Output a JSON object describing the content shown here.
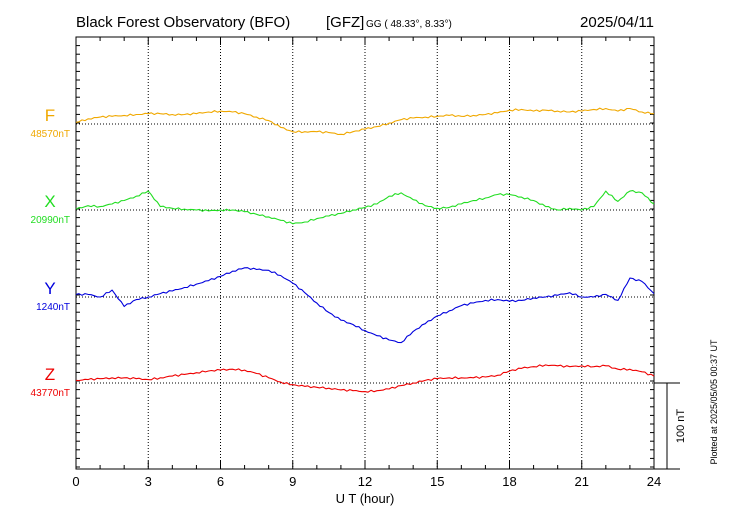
{
  "chart_data": {
    "type": "line",
    "title": "Black Forest Observatory (BFO)",
    "agency": "[GFZ]",
    "coords": "GG ( 48.33°,   8.33°)",
    "date": "2025/04/11",
    "xlabel": "U T (hour)",
    "xlim": [
      0,
      24
    ],
    "xticks": [
      "0",
      "3",
      "6",
      "9",
      "12",
      "15",
      "18",
      "21",
      "24"
    ],
    "scale_label": "100 nT",
    "scale_nT": 100,
    "plotted_note": "Plotted at 2025/05/05 00:37 UT",
    "grid": true,
    "series": [
      {
        "name": "F",
        "baseline_label": "48570nT",
        "baseline": 48570,
        "color": "#f0a800",
        "x": [
          0,
          0.5,
          1,
          1.5,
          2,
          2.5,
          3,
          3.5,
          4,
          4.5,
          5,
          5.5,
          6,
          6.5,
          7,
          7.5,
          8,
          8.5,
          9,
          9.5,
          10,
          10.5,
          11,
          11.5,
          12,
          12.5,
          13,
          13.5,
          14,
          14.5,
          15,
          15.5,
          16,
          16.5,
          17,
          17.5,
          18,
          18.5,
          19,
          19.5,
          20,
          20.5,
          21,
          21.5,
          22,
          22.5,
          23,
          23.5,
          24
        ],
        "y": [
          48572,
          48576,
          48578,
          48579,
          48580,
          48581,
          48582,
          48582,
          48581,
          48581,
          48582,
          48584,
          48585,
          48584,
          48582,
          48578,
          48574,
          48566,
          48561,
          48561,
          48561,
          48560,
          48558,
          48561,
          48564,
          48567,
          48571,
          48575,
          48577,
          48578,
          48579,
          48580,
          48579,
          48580,
          48581,
          48583,
          48586,
          48587,
          48585,
          48586,
          48585,
          48584,
          48585,
          48587,
          48588,
          48585,
          48588,
          48584,
          48582
        ]
      },
      {
        "name": "X",
        "baseline_label": "20990nT",
        "baseline": 20990,
        "color": "#22dd22",
        "x": [
          0,
          0.5,
          1,
          1.5,
          2,
          2.5,
          3,
          3.5,
          4,
          4.5,
          5,
          5.5,
          6,
          6.5,
          7,
          7.5,
          8,
          8.5,
          9,
          9.5,
          10,
          10.5,
          11,
          11.5,
          12,
          12.5,
          13,
          13.5,
          14,
          14.5,
          15,
          15.5,
          16,
          16.5,
          17,
          17.5,
          18,
          18.5,
          19,
          19.5,
          20,
          20.5,
          21,
          21.5,
          22,
          22.5,
          23,
          23.5,
          24
        ],
        "y": [
          20991,
          20995,
          20994,
          20997,
          21001,
          21006,
          21012,
          20994,
          20992,
          20991,
          20990,
          20989,
          20990,
          20990,
          20988,
          20985,
          20982,
          20978,
          20974,
          20976,
          20980,
          20983,
          20986,
          20990,
          20993,
          20997,
          21006,
          21010,
          21002,
          20995,
          20992,
          20993,
          20997,
          21001,
          21004,
          21008,
          21008,
          21005,
          21001,
          20994,
          20990,
          20992,
          20990,
          20994,
          21012,
          21000,
          21012,
          21010,
          20997
        ]
      },
      {
        "name": "Y",
        "baseline_label": "1240nT",
        "baseline": 1240,
        "color": "#0000dd",
        "x": [
          0,
          0.5,
          1,
          1.5,
          2,
          2.5,
          3,
          3.5,
          4,
          4.5,
          5,
          5.5,
          6,
          6.5,
          7,
          7.5,
          8,
          8.5,
          9,
          9.5,
          10,
          10.5,
          11,
          11.5,
          12,
          12.5,
          13,
          13.5,
          14,
          14.5,
          15,
          15.5,
          16,
          16.5,
          17,
          17.5,
          18,
          18.5,
          19,
          19.5,
          20,
          20.5,
          21,
          21.5,
          22,
          22.5,
          23,
          23.5,
          24
        ],
        "y": [
          1243,
          1243,
          1240,
          1248,
          1229,
          1237,
          1240,
          1244,
          1247,
          1251,
          1255,
          1259,
          1264,
          1270,
          1274,
          1272,
          1271,
          1265,
          1256,
          1245,
          1233,
          1222,
          1213,
          1208,
          1201,
          1195,
          1190,
          1187,
          1200,
          1209,
          1218,
          1224,
          1230,
          1233,
          1236,
          1237,
          1235,
          1236,
          1239,
          1240,
          1242,
          1245,
          1240,
          1240,
          1243,
          1236,
          1262,
          1258,
          1244
        ]
      },
      {
        "name": "Z",
        "baseline_label": "43770nT",
        "baseline": 43770,
        "color": "#ee0000",
        "x": [
          0,
          0.5,
          1,
          1.5,
          2,
          2.5,
          3,
          3.5,
          4,
          4.5,
          5,
          5.5,
          6,
          6.5,
          7,
          7.5,
          8,
          8.5,
          9,
          9.5,
          10,
          10.5,
          11,
          11.5,
          12,
          12.5,
          13,
          13.5,
          14,
          14.5,
          15,
          15.5,
          16,
          16.5,
          17,
          17.5,
          18,
          18.5,
          19,
          19.5,
          20,
          20.5,
          21,
          21.5,
          22,
          22.5,
          23,
          23.5,
          24
        ],
        "y": [
          43773,
          43774,
          43775,
          43776,
          43776,
          43775,
          43774,
          43776,
          43778,
          43780,
          43782,
          43784,
          43785,
          43786,
          43785,
          43781,
          43776,
          43771,
          43768,
          43766,
          43765,
          43764,
          43762,
          43761,
          43760,
          43761,
          43763,
          43767,
          43770,
          43773,
          43775,
          43776,
          43776,
          43776,
          43777,
          43779,
          43784,
          43787,
          43789,
          43791,
          43790,
          43789,
          43790,
          43789,
          43790,
          43786,
          43786,
          43783,
          43778
        ]
      }
    ]
  }
}
